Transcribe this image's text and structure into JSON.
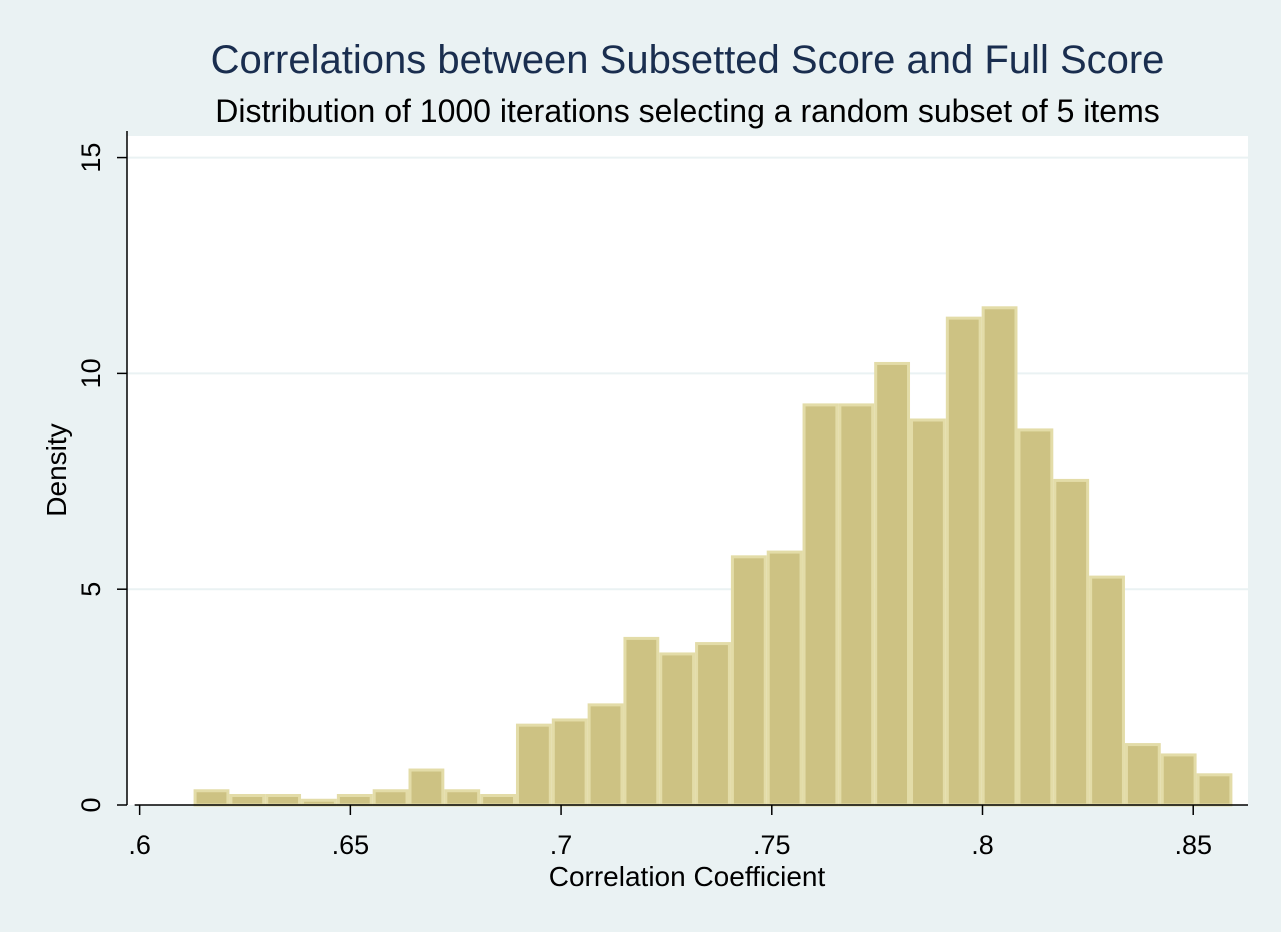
{
  "chart_data": {
    "type": "bar",
    "subtype": "histogram",
    "title": "Correlations between Subsetted Score and Full Score",
    "subtitle": "Distribution of 1000 iterations selecting a random subset of 5 items",
    "xlabel": "Correlation Coefficient",
    "ylabel": "Density",
    "xlim": [
      0.597,
      0.863
    ],
    "ylim": [
      0,
      15.5
    ],
    "x_ticks": [
      {
        "value": 0.6,
        "label": ".6"
      },
      {
        "value": 0.65,
        "label": ".65"
      },
      {
        "value": 0.7,
        "label": ".7"
      },
      {
        "value": 0.75,
        "label": ".75"
      },
      {
        "value": 0.8,
        "label": ".8"
      },
      {
        "value": 0.85,
        "label": ".85"
      }
    ],
    "y_ticks": [
      {
        "value": 0,
        "label": "0"
      },
      {
        "value": 5,
        "label": "5"
      },
      {
        "value": 10,
        "label": "10"
      },
      {
        "value": 15,
        "label": "15"
      }
    ],
    "bin_width": 0.0085,
    "bin_start": 0.6128,
    "values": [
      0.33,
      0.22,
      0.22,
      0.11,
      0.22,
      0.33,
      0.81,
      0.33,
      0.22,
      1.85,
      1.97,
      2.32,
      3.86,
      3.5,
      3.74,
      5.75,
      5.86,
      9.27,
      9.27,
      10.23,
      8.92,
      11.28,
      11.52,
      8.69,
      7.52,
      5.28,
      1.4,
      1.16,
      0.7
    ],
    "grid": true,
    "bar_color": "#cdc283",
    "bar_outline": "#e3dca8",
    "background": "#eaf2f3",
    "plot_background": "#ffffff",
    "grid_color": "#eaf2f3"
  }
}
